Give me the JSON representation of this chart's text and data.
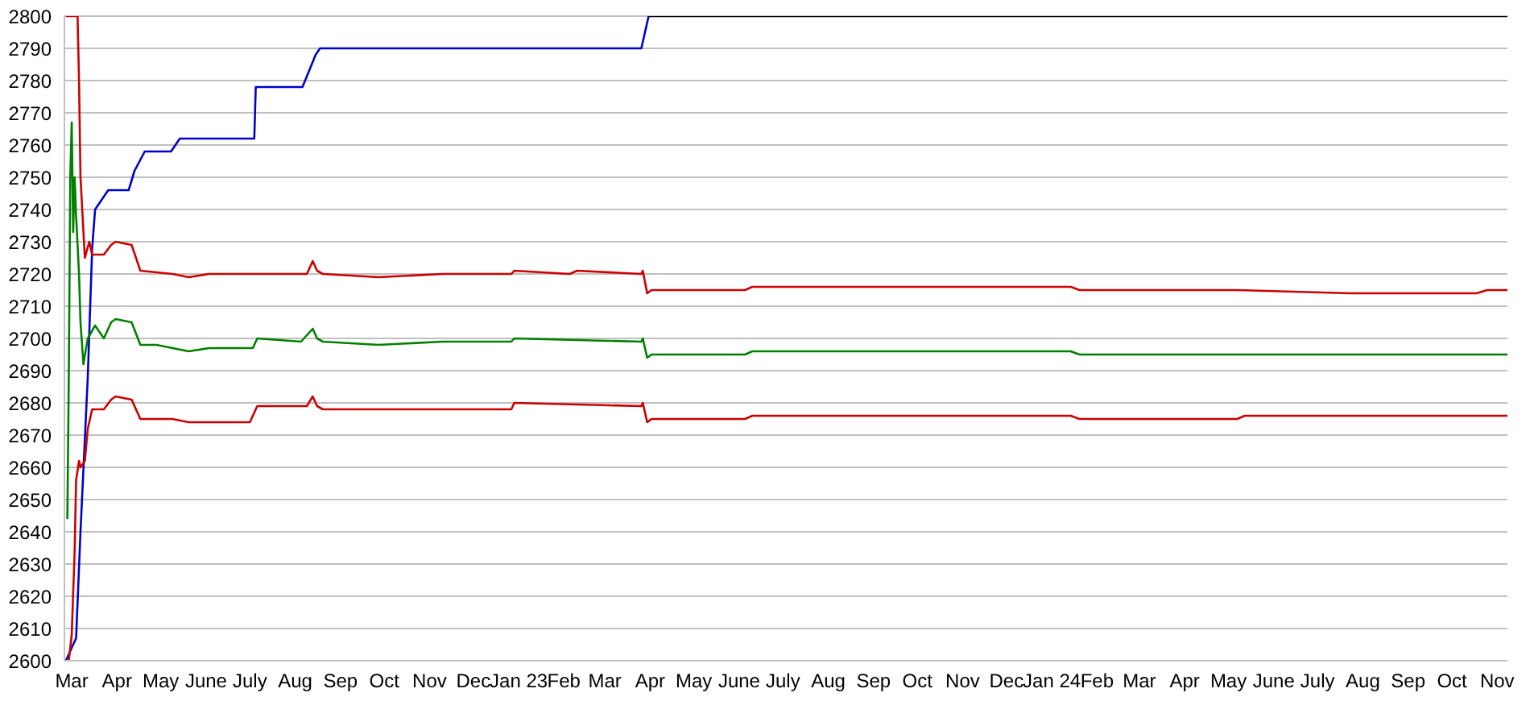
{
  "chart_data": {
    "type": "line",
    "xlim": [
      "2022-02-24",
      "2024-11-08"
    ],
    "ylim": [
      2600,
      2800
    ],
    "yticks": [
      2600,
      2610,
      2620,
      2630,
      2640,
      2650,
      2660,
      2670,
      2680,
      2690,
      2700,
      2710,
      2720,
      2730,
      2740,
      2750,
      2760,
      2770,
      2780,
      2790,
      2800
    ],
    "xticks": [
      {
        "value": "2022-03",
        "label": "Mar"
      },
      {
        "value": "2022-04",
        "label": "Apr"
      },
      {
        "value": "2022-05",
        "label": "May"
      },
      {
        "value": "2022-06",
        "label": "June"
      },
      {
        "value": "2022-07",
        "label": "July"
      },
      {
        "value": "2022-08",
        "label": "Aug"
      },
      {
        "value": "2022-09",
        "label": "Sep"
      },
      {
        "value": "2022-10",
        "label": "Oct"
      },
      {
        "value": "2022-11",
        "label": "Nov"
      },
      {
        "value": "2022-12",
        "label": "Dec"
      },
      {
        "value": "2023-01",
        "label": "Jan 23"
      },
      {
        "value": "2023-02",
        "label": "Feb"
      },
      {
        "value": "2023-03",
        "label": "Mar"
      },
      {
        "value": "2023-04",
        "label": "Apr"
      },
      {
        "value": "2023-05",
        "label": "May"
      },
      {
        "value": "2023-06",
        "label": "June"
      },
      {
        "value": "2023-07",
        "label": "July"
      },
      {
        "value": "2023-08",
        "label": "Aug"
      },
      {
        "value": "2023-09",
        "label": "Sep"
      },
      {
        "value": "2023-10",
        "label": "Oct"
      },
      {
        "value": "2023-11",
        "label": "Nov"
      },
      {
        "value": "2023-12",
        "label": "Dec"
      },
      {
        "value": "2024-01",
        "label": "Jan 24"
      },
      {
        "value": "2024-02",
        "label": "Feb"
      },
      {
        "value": "2024-03",
        "label": "Mar"
      },
      {
        "value": "2024-04",
        "label": "Apr"
      },
      {
        "value": "2024-05",
        "label": "May"
      },
      {
        "value": "2024-06",
        "label": "June"
      },
      {
        "value": "2024-07",
        "label": "July"
      },
      {
        "value": "2024-08",
        "label": "Aug"
      },
      {
        "value": "2024-09",
        "label": "Sep"
      },
      {
        "value": "2024-10",
        "label": "Oct"
      },
      {
        "value": "2024-11",
        "label": "Nov"
      }
    ],
    "grid": "y",
    "marker": "none",
    "line_style": "solid",
    "series": [
      {
        "color": "#0000cc",
        "x": [
          "2022-02-25",
          "2022-03-04",
          "2022-03-07",
          "2022-03-12",
          "2022-03-15",
          "2022-03-17",
          "2022-03-20",
          "2022-03-26",
          "2022-04-09",
          "2022-04-13",
          "2022-04-20",
          "2022-05-08",
          "2022-05-14",
          "2022-07-04",
          "2022-07-05",
          "2022-08-06",
          "2022-08-15",
          "2022-08-18",
          "2023-03-26",
          "2023-03-31"
        ],
        "values": [
          2600,
          2607,
          2640,
          2688,
          2728,
          2740,
          2742,
          2746,
          2746,
          2752,
          2758,
          2758,
          2762,
          2762,
          2778,
          2778,
          2788,
          2790,
          2790,
          2800
        ]
      },
      {
        "color": "#000000",
        "x": [
          "2023-03-31",
          "2024-11-08"
        ],
        "values": [
          2800,
          2800
        ]
      },
      {
        "color": "#cc0000",
        "x": [
          "2022-02-25",
          "2022-03-05",
          "2022-03-06",
          "2022-03-07",
          "2022-03-10",
          "2022-03-13",
          "2022-03-15",
          "2022-03-23",
          "2022-03-28",
          "2022-03-31",
          "2022-04-11",
          "2022-04-17",
          "2022-05-09",
          "2022-05-20",
          "2022-06-03",
          "2022-07-03",
          "2022-08-09",
          "2022-08-13",
          "2022-08-16",
          "2022-08-20",
          "2022-09-27",
          "2022-11-10",
          "2022-12-27",
          "2022-12-29",
          "2023-02-05",
          "2023-02-10",
          "2023-03-26",
          "2023-03-27",
          "2023-03-30",
          "2023-04-02",
          "2023-06-05",
          "2023-06-10",
          "2023-08-20",
          "2023-10-24",
          "2024-01-14",
          "2024-01-20",
          "2024-05-07",
          "2024-07-23",
          "2024-10-18",
          "2024-10-25",
          "2024-11-08"
        ],
        "values": [
          2800,
          2800,
          2780,
          2750,
          2725,
          2730,
          2726,
          2726,
          2729,
          2730,
          2729,
          2721,
          2720,
          2719,
          2720,
          2720,
          2720,
          2724,
          2721,
          2720,
          2719,
          2720,
          2720,
          2721,
          2720,
          2721,
          2720,
          2721,
          2714,
          2715,
          2715,
          2716,
          2716,
          2716,
          2716,
          2715,
          2715,
          2714,
          2714,
          2715,
          2715
        ]
      },
      {
        "color": "#008000",
        "x": [
          "2022-02-26",
          "2022-02-27",
          "2022-02-28",
          "2022-03-01",
          "2022-03-02",
          "2022-03-03",
          "2022-03-04",
          "2022-03-06",
          "2022-03-07",
          "2022-03-09",
          "2022-03-12",
          "2022-03-17",
          "2022-03-23",
          "2022-03-28",
          "2022-03-31",
          "2022-04-11",
          "2022-04-17",
          "2022-04-28",
          "2022-05-20",
          "2022-06-03",
          "2022-07-03",
          "2022-07-06",
          "2022-08-05",
          "2022-08-13",
          "2022-08-16",
          "2022-08-20",
          "2022-09-27",
          "2022-11-10",
          "2022-12-27",
          "2022-12-29",
          "2023-03-26",
          "2023-03-27",
          "2023-03-30",
          "2023-04-02",
          "2023-06-05",
          "2023-06-10",
          "2024-01-14",
          "2024-01-20",
          "2024-11-08"
        ],
        "values": [
          2644,
          2688,
          2750,
          2767,
          2733,
          2750,
          2738,
          2720,
          2705,
          2692,
          2700,
          2704,
          2700,
          2705,
          2706,
          2705,
          2698,
          2698,
          2696,
          2697,
          2697,
          2700,
          2699,
          2703,
          2700,
          2699,
          2698,
          2699,
          2699,
          2700,
          2699,
          2700,
          2694,
          2695,
          2695,
          2696,
          2696,
          2695,
          2695
        ]
      },
      {
        "color": "#cc0000",
        "x": [
          "2022-02-27",
          "2022-03-01",
          "2022-03-03",
          "2022-03-04",
          "2022-03-06",
          "2022-03-07",
          "2022-03-10",
          "2022-03-12",
          "2022-03-15",
          "2022-03-23",
          "2022-03-28",
          "2022-03-31",
          "2022-04-11",
          "2022-04-17",
          "2022-05-09",
          "2022-05-20",
          "2022-06-03",
          "2022-07-01",
          "2022-07-06",
          "2022-08-09",
          "2022-08-13",
          "2022-08-16",
          "2022-08-20",
          "2022-11-10",
          "2022-12-27",
          "2022-12-29",
          "2023-03-26",
          "2023-03-27",
          "2023-03-30",
          "2023-04-02",
          "2023-06-05",
          "2023-06-10",
          "2024-01-14",
          "2024-01-20",
          "2024-05-07",
          "2024-05-12",
          "2024-11-08"
        ],
        "values": [
          2600,
          2608,
          2634,
          2656,
          2662,
          2660,
          2662,
          2672,
          2678,
          2678,
          2681,
          2682,
          2681,
          2675,
          2675,
          2674,
          2674,
          2674,
          2679,
          2679,
          2682,
          2679,
          2678,
          2678,
          2678,
          2680,
          2679,
          2680,
          2674,
          2675,
          2675,
          2676,
          2676,
          2675,
          2675,
          2676,
          2676
        ]
      }
    ]
  }
}
